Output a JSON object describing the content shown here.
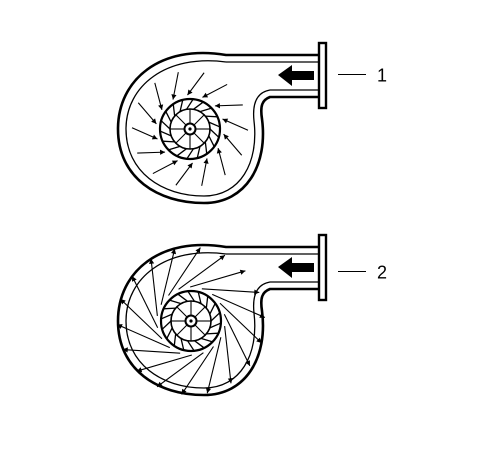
{
  "figures": [
    {
      "id": "fan-1",
      "label": "1",
      "vanes": "forward",
      "inflow": "converging"
    },
    {
      "id": "fan-2",
      "label": "2",
      "vanes": "backward",
      "inflow": "tangential"
    }
  ],
  "colors": {
    "line": "#000000",
    "background": "#ffffff"
  },
  "icons": [
    "outlet-arrow-icon",
    "hub-icon",
    "flow-arrow-icon"
  ]
}
